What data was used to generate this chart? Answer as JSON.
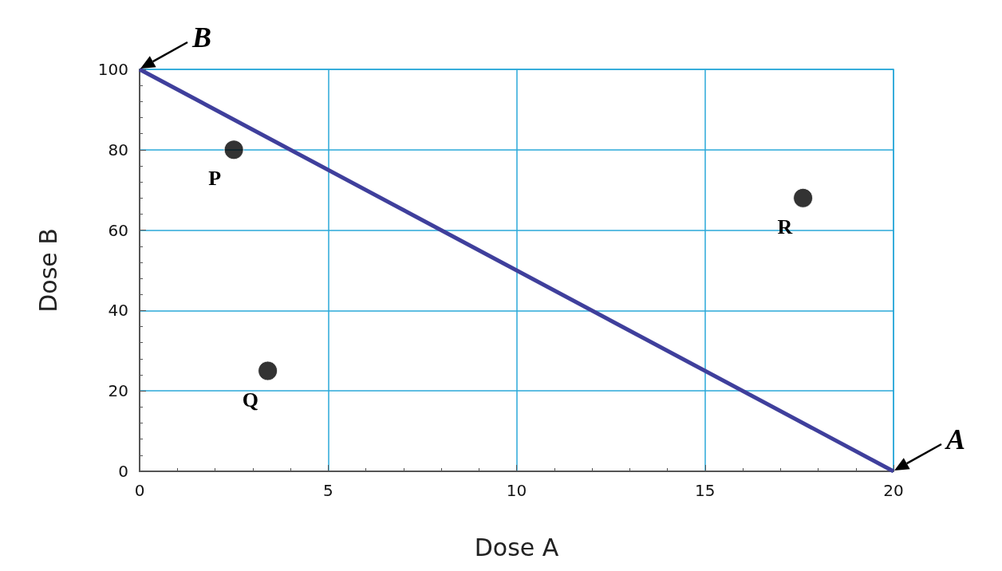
{
  "chart_data": {
    "type": "scatter",
    "xlabel": "Dose A",
    "ylabel": "Dose B",
    "xlim": [
      0,
      20
    ],
    "xticks": [
      0,
      5,
      10,
      15,
      20
    ],
    "ylim": [
      0,
      100
    ],
    "yticks": [
      0,
      20,
      40,
      60,
      80,
      100
    ],
    "grid": true,
    "marker": "circle",
    "series": [
      {
        "type": "line",
        "marker": "none",
        "color": "#3f3f9c",
        "x": [
          0,
          20
        ],
        "values": [
          100,
          0
        ]
      },
      {
        "color": "#000000",
        "x": [
          2.5,
          3.4,
          17.6
        ],
        "values": [
          80,
          25,
          68
        ]
      }
    ],
    "annotations": [
      {
        "text": "P",
        "x": 2.5,
        "y": 80
      },
      {
        "text": "Q",
        "x": 3.4,
        "y": 25
      },
      {
        "text": "R",
        "x": 17.6,
        "y": 68
      },
      {
        "text": "A",
        "x": 20,
        "y": 0
      },
      {
        "text": "B",
        "x": 0,
        "y": 100
      }
    ]
  }
}
